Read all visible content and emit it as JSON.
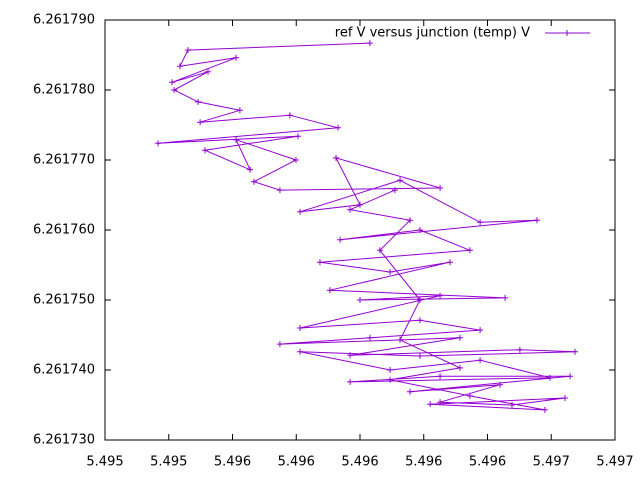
{
  "chart_data": {
    "type": "line",
    "markers": "plus",
    "x": [
      5.496039,
      5.495325,
      5.495294,
      5.495514,
      5.495263,
      5.495404,
      5.495271,
      5.495365,
      5.495529,
      5.495373,
      5.495725,
      5.495914,
      5.495208,
      5.495757,
      5.495392,
      5.495569,
      5.495514,
      5.495749,
      5.495584,
      5.495686,
      5.496314,
      5.495906,
      5.496,
      5.495765,
      5.496157,
      5.496471,
      5.496694,
      5.495922,
      5.496235,
      5.496431,
      5.495843,
      5.496118,
      5.496353,
      5.495882,
      5.496569,
      5.496,
      5.496314,
      5.495765,
      5.496235,
      5.496471,
      5.496039,
      5.495686,
      5.496392,
      5.495961,
      5.496627,
      5.496843,
      5.496235,
      5.495765,
      5.496118,
      5.496471,
      5.496745,
      5.495961,
      5.496314,
      5.496824,
      5.496196,
      5.496549,
      5.496314,
      5.496596,
      5.496804,
      5.496275,
      5.496725,
      5.496431,
      5.496118,
      5.496392,
      5.496157,
      5.496235,
      5.496078,
      5.496196,
      5.495961,
      5.496137
    ],
    "series": [
      {
        "name": "ref V versus junction (temp) V",
        "color": "#9400d3",
        "values": [
          6.2617867,
          6.2617857,
          6.2617834,
          6.2617846,
          6.2617811,
          6.2617826,
          6.26178,
          6.2617783,
          6.2617771,
          6.2617754,
          6.2617764,
          6.2617746,
          6.2617724,
          6.2617734,
          6.2617714,
          6.2617686,
          6.2617729,
          6.26177,
          6.2617669,
          6.2617657,
          6.261766,
          6.2617703,
          6.2617636,
          6.2617626,
          6.2617671,
          6.2617611,
          6.2617614,
          6.2617586,
          6.26176,
          6.2617571,
          6.2617554,
          6.261754,
          6.2617554,
          6.2617514,
          6.2617503,
          6.26175,
          6.2617506,
          6.261746,
          6.2617471,
          6.2617457,
          6.2617446,
          6.2617437,
          6.2617446,
          6.2617421,
          6.2617429,
          6.2617426,
          6.261742,
          6.2617426,
          6.26174,
          6.2617414,
          6.2617389,
          6.2617383,
          6.2617391,
          6.2617391,
          6.2617369,
          6.2617379,
          6.2617354,
          6.261735,
          6.261736,
          6.2617351,
          6.2617343,
          6.2617363,
          6.2617386,
          6.2617403,
          6.2617443,
          6.26175,
          6.2617571,
          6.2617614,
          6.2617629,
          6.2617657
        ]
      }
    ],
    "xlim": [
      5.495,
      5.497
    ],
    "xticks": [
      {
        "value": 5.495,
        "label": "5.495"
      },
      {
        "value": 5.49525,
        "label": "5.495"
      },
      {
        "value": 5.4955,
        "label": "5.496"
      },
      {
        "value": 5.49575,
        "label": "5.496"
      },
      {
        "value": 5.496,
        "label": "5.496"
      },
      {
        "value": 5.49625,
        "label": "5.496"
      },
      {
        "value": 5.4965,
        "label": "5.496"
      },
      {
        "value": 5.49675,
        "label": "5.497"
      },
      {
        "value": 5.497,
        "label": "5.497"
      }
    ],
    "ylim": [
      6.26173,
      6.26179
    ],
    "yticks": [
      {
        "value": 6.26173,
        "label": "6.261730"
      },
      {
        "value": 6.26174,
        "label": "6.261740"
      },
      {
        "value": 6.26175,
        "label": "6.261750"
      },
      {
        "value": 6.26176,
        "label": "6.261760"
      },
      {
        "value": 6.26177,
        "label": "6.261770"
      },
      {
        "value": 6.26178,
        "label": "6.261780"
      },
      {
        "value": 6.26179,
        "label": "6.261790"
      }
    ],
    "legend": "top-right"
  }
}
